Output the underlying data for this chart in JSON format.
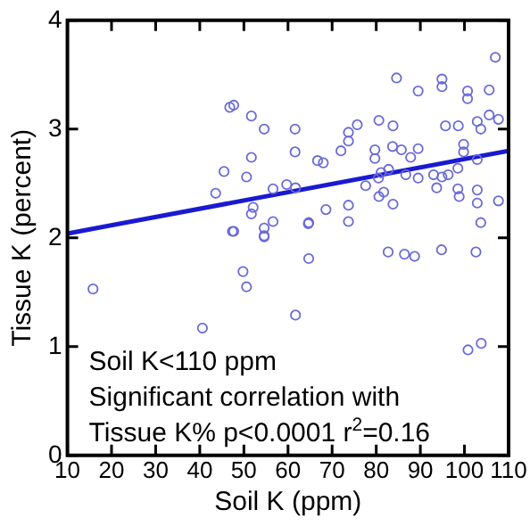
{
  "chart_data": {
    "type": "scatter",
    "xlabel": "Soil K (ppm)",
    "ylabel": "Tissue K (percent)",
    "xlim": [
      10,
      110
    ],
    "xticks": [
      10,
      20,
      30,
      40,
      50,
      60,
      70,
      80,
      90,
      100,
      110
    ],
    "ylim": [
      0,
      4
    ],
    "yticks": [
      0,
      1,
      2,
      3,
      4
    ],
    "annotations": [
      "Soil K<110 ppm",
      "Significant correlation with",
      "Tissue K% p<0.0001 r$^{2}$=0.16"
    ],
    "series": [
      {
        "type": "scatter",
        "marker": "circle",
        "color": "#6a6ad8",
        "x": [
          15.8,
          47.4,
          54.6,
          64.7,
          49.8,
          50.6,
          61.7,
          40.6,
          82.7,
          86.4,
          88.7,
          102.6,
          100.8,
          103.8,
          94.8,
          46.8,
          47.7,
          51.7,
          54.6,
          61.6,
          51.7,
          61.6,
          45.5,
          50.6,
          43.6,
          56.6,
          59.7,
          61.7,
          52.1,
          51.7,
          56.6,
          54.6,
          54.6,
          47.7,
          64.6,
          107,
          84.6,
          94.9,
          94.9,
          89.5,
          100.7,
          100.7,
          105.6,
          105.6,
          107.7,
          102.9,
          103.7,
          95.7,
          98.6,
          80.6,
          83.8,
          75.7,
          73.7,
          73.7,
          72,
          66.7,
          68,
          79.7,
          83.7,
          85.7,
          89.5,
          79.7,
          87.8,
          99.8,
          99.8,
          102.9,
          82.8,
          81.1,
          80.5,
          86.7,
          89.5,
          93,
          94.9,
          96.3,
          98.5,
          77.6,
          93.7,
          98.5,
          81.7,
          80.6,
          98.8,
          102.9,
          102.9,
          107.7,
          83.8,
          73.7,
          68.6,
          73.7,
          64.7,
          103.7
        ],
        "values": [
          1.53,
          2.06,
          2.01,
          1.81,
          1.69,
          1.55,
          1.29,
          1.17,
          1.87,
          1.85,
          1.83,
          1.87,
          0.97,
          1.03,
          1.89,
          3.2,
          3.22,
          3.12,
          3.0,
          3.0,
          2.74,
          2.79,
          2.61,
          2.56,
          2.41,
          2.45,
          2.49,
          2.46,
          2.28,
          2.22,
          2.15,
          2.09,
          2.02,
          2.06,
          2.13,
          3.66,
          3.47,
          3.46,
          3.39,
          3.35,
          3.35,
          3.28,
          3.36,
          3.13,
          3.09,
          3.07,
          3.0,
          3.03,
          3.03,
          3.08,
          3.03,
          3.04,
          2.97,
          2.89,
          2.8,
          2.71,
          2.69,
          2.81,
          2.84,
          2.81,
          2.82,
          2.73,
          2.74,
          2.86,
          2.79,
          2.72,
          2.63,
          2.6,
          2.55,
          2.58,
          2.55,
          2.58,
          2.56,
          2.58,
          2.64,
          2.48,
          2.46,
          2.45,
          2.42,
          2.38,
          2.38,
          2.44,
          2.32,
          2.34,
          2.31,
          2.3,
          2.26,
          2.15,
          2.14,
          2.14
        ]
      },
      {
        "type": "line",
        "marker": "none",
        "color": "#1a1ad0",
        "x": [
          10,
          110
        ],
        "values": [
          2.04,
          2.8
        ]
      }
    ]
  }
}
